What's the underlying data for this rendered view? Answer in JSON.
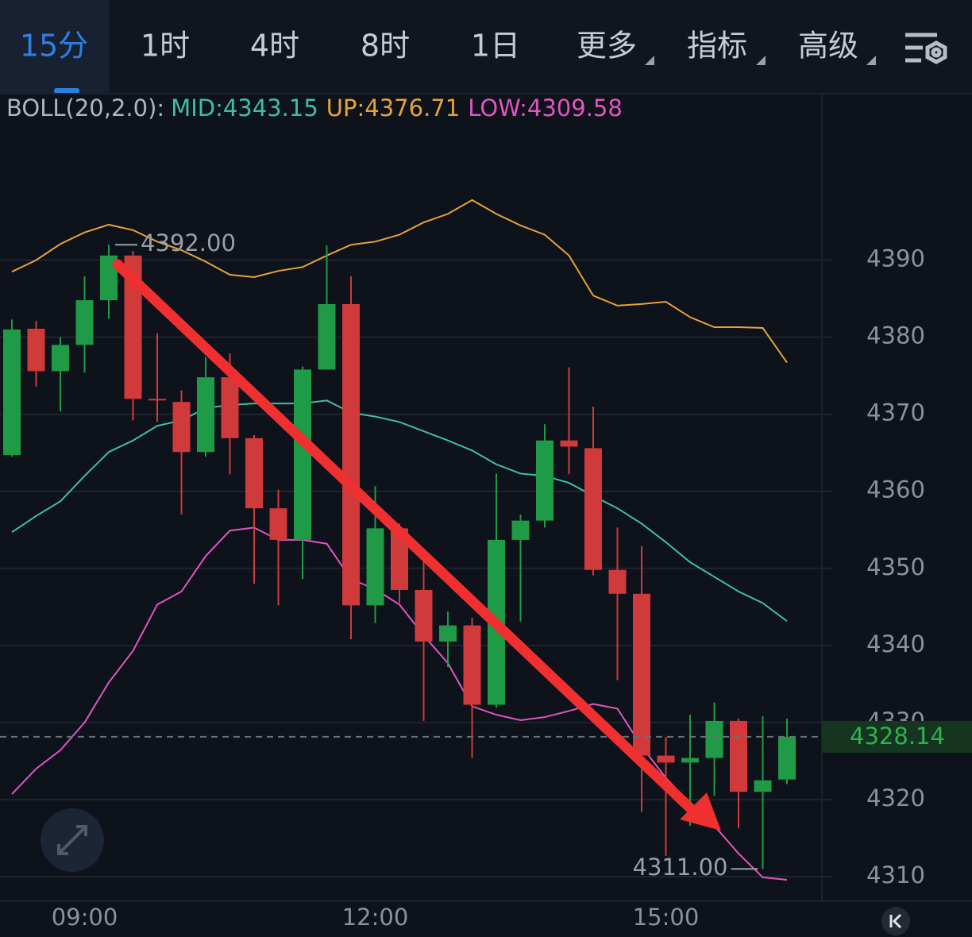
{
  "tabs": [
    "15分",
    "1时",
    "4时",
    "8时",
    "1日",
    "更多",
    "指标",
    "高级"
  ],
  "active_tab": 0,
  "chart_data": {
    "type": "candlestick",
    "indicator_label": "BOLL(20,2.0):",
    "categories": [
      null,
      null,
      null,
      "09:00",
      null,
      null,
      null,
      null,
      null,
      null,
      null,
      null,
      null,
      null,
      null,
      "12:00",
      null,
      null,
      null,
      null,
      null,
      null,
      null,
      null,
      null,
      null,
      null,
      "15:00",
      null,
      null,
      null,
      null,
      null
    ],
    "open": [
      4364.7,
      4381.1,
      4375.6,
      4379.0,
      4384.8,
      4390.6,
      4372.0,
      4371.6,
      4365.1,
      4374.8,
      4366.9,
      4357.8,
      4353.7,
      4375.8,
      4384.3,
      4345.2,
      4355.2,
      4347.2,
      4340.5,
      4342.6,
      4332.3,
      4353.7,
      4356.2,
      4366.6,
      4365.6,
      4349.8,
      4346.7,
      4325.7,
      4324.8,
      4325.4,
      4330.2,
      4321.0,
      4322.6
    ],
    "high": [
      4382.3,
      4382.1,
      4380.0,
      4387.9,
      4392,
      4391.2,
      4380.5,
      4373.1,
      4377.4,
      4377.9,
      4367.3,
      4360.2,
      4376.2,
      4391.9,
      4387.9,
      4360.7,
      4355.8,
      4351.6,
      4344.4,
      4343.6,
      4362.3,
      4357.0,
      4368.7,
      4376.1,
      4371.0,
      4355.3,
      4352.9,
      4328.1,
      4331.0,
      4332.6,
      4330.5,
      4330.8,
      4330.5
    ],
    "low": [
      4364.5,
      4373.6,
      4370.4,
      4375.4,
      4382.4,
      4369.2,
      4369.0,
      4357.0,
      4364.5,
      4362.2,
      4348.0,
      4345.2,
      4348.6,
      4375.8,
      4340.8,
      4342.9,
      4345.5,
      4330.2,
      4337.2,
      4325.4,
      4331.9,
      4343.1,
      4355.3,
      4362.2,
      4349.1,
      4335.5,
      4318.4,
      4312.7,
      4316.6,
      4320.5,
      4316.3,
      4311,
      4322.0
    ],
    "close": [
      4381.0,
      4375.6,
      4379.0,
      4384.8,
      4390.6,
      4372.0,
      4371.8,
      4365.1,
      4374.8,
      4366.9,
      4357.8,
      4353.7,
      4375.8,
      4384.3,
      4345.2,
      4355.2,
      4347.2,
      4340.5,
      4342.6,
      4332.3,
      4353.7,
      4356.2,
      4366.6,
      4365.8,
      4349.8,
      4346.7,
      4325.7,
      4324.8,
      4325.4,
      4330.2,
      4321.0,
      4322.5,
      4328.14
    ],
    "up_color": "#1f9a46",
    "down_color": "#d03a3a",
    "overlays": [
      {
        "name": "MID:4343.15",
        "color": "#3fbfa0",
        "values": [
          4354.7,
          4356.8,
          4358.7,
          4362.0,
          4365.1,
          4366.6,
          4368.5,
          4369.2,
          4370.8,
          4371.2,
          4371.4,
          4371.4,
          4371.4,
          4371.8,
          4370.2,
          4369.7,
          4369.0,
          4367.8,
          4366.6,
          4365.3,
          4363.5,
          4362.3,
          4362.0,
          4361.1,
          4359.4,
          4357.8,
          4355.8,
          4353.4,
          4350.8,
          4348.9,
          4347.0,
          4345.5,
          4343.15
        ]
      },
      {
        "name": "UP:4376.71",
        "color": "#e6a23c",
        "values": [
          4388.5,
          4390.0,
          4392.1,
          4393.6,
          4394.6,
          4393.9,
          4392.4,
          4391.3,
          4389.8,
          4388.1,
          4387.8,
          4388.6,
          4389.1,
          4390.6,
          4392.0,
          4392.4,
          4393.3,
          4394.9,
          4396.0,
          4397.8,
          4396.0,
          4394.5,
          4393.3,
          4390.6,
          4385.4,
          4384.1,
          4384.3,
          4384.6,
          4382.6,
          4381.3,
          4381.3,
          4381.2,
          4376.71
        ]
      },
      {
        "name": "LOW:4309.58",
        "color": "#e055c0",
        "values": [
          4320.7,
          4324.0,
          4326.4,
          4330.0,
          4335.2,
          4339.3,
          4345.3,
          4347.0,
          4351.6,
          4354.9,
          4355.3,
          4353.7,
          4353.7,
          4353.2,
          4348.6,
          4347.3,
          4345.3,
          4341.3,
          4337.7,
          4332.1,
          4331.0,
          4330.3,
          4330.7,
          4331.5,
          4332.4,
          4331.8,
          4326.9,
          4322.8,
          4319.5,
          4316.6,
          4313.0,
          4309.9,
          4309.58
        ]
      }
    ],
    "ylim": [
      4306.8,
      4411.6
    ],
    "yticks": [
      4310,
      4320,
      4330,
      4340,
      4350,
      4360,
      4370,
      4380,
      4390
    ],
    "grid": true,
    "max_label": {
      "value": 4392,
      "label": "4392.00"
    },
    "min_label": {
      "value": 4311,
      "label": "4311.00"
    },
    "last_price": 4328.14,
    "last_price_color": "#2bb34f"
  }
}
